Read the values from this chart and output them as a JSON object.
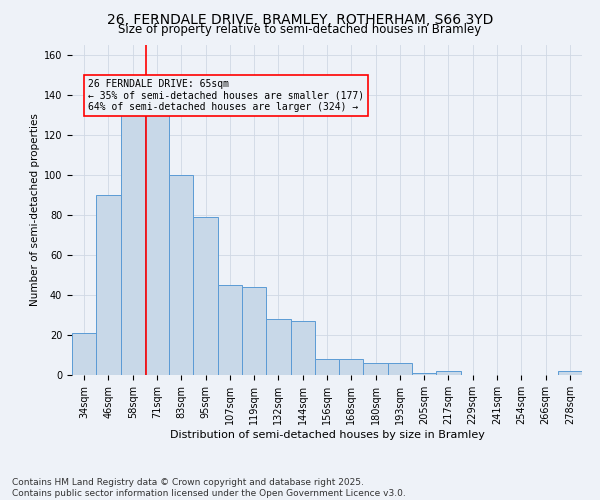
{
  "title_line1": "26, FERNDALE DRIVE, BRAMLEY, ROTHERHAM, S66 3YD",
  "title_line2": "Size of property relative to semi-detached houses in Bramley",
  "xlabel": "Distribution of semi-detached houses by size in Bramley",
  "ylabel": "Number of semi-detached properties",
  "categories": [
    "34sqm",
    "46sqm",
    "58sqm",
    "71sqm",
    "83sqm",
    "95sqm",
    "107sqm",
    "119sqm",
    "132sqm",
    "144sqm",
    "156sqm",
    "168sqm",
    "180sqm",
    "193sqm",
    "205sqm",
    "217sqm",
    "229sqm",
    "241sqm",
    "254sqm",
    "266sqm",
    "278sqm"
  ],
  "values": [
    21,
    90,
    130,
    130,
    100,
    79,
    45,
    44,
    28,
    27,
    8,
    8,
    6,
    6,
    1,
    2,
    0,
    0,
    0,
    0,
    2
  ],
  "bar_color": "#c8d8e8",
  "bar_edge_color": "#5b9bd5",
  "grid_color": "#d0d8e4",
  "background_color": "#eef2f8",
  "red_line_x": 2.54,
  "annotation_text_line1": "26 FERNDALE DRIVE: 65sqm",
  "annotation_text_line2": "← 35% of semi-detached houses are smaller (177)",
  "annotation_text_line3": "64% of semi-detached houses are larger (324) →",
  "ylim": [
    0,
    165
  ],
  "yticks": [
    0,
    20,
    40,
    60,
    80,
    100,
    120,
    140,
    160
  ],
  "footnote": "Contains HM Land Registry data © Crown copyright and database right 2025.\nContains public sector information licensed under the Open Government Licence v3.0.",
  "footnote_fontsize": 6.5,
  "title1_fontsize": 10,
  "title2_fontsize": 8.5,
  "xlabel_fontsize": 8,
  "ylabel_fontsize": 7.5,
  "tick_fontsize": 7,
  "annot_fontsize": 7
}
